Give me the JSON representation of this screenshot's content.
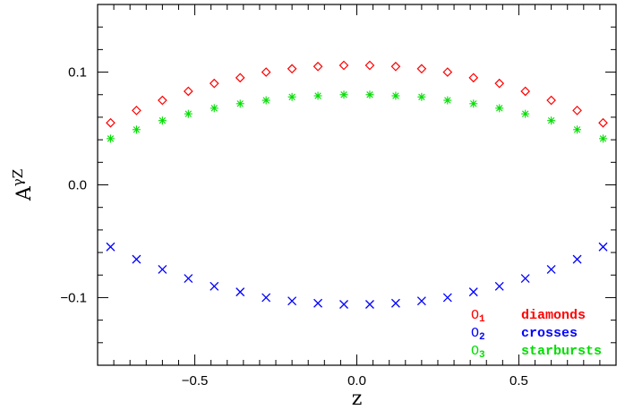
{
  "chart_data": {
    "type": "scatter",
    "xlabel": "z",
    "ylabel": "A",
    "ylabel_superscript": "γZ",
    "xlim": [
      -0.8,
      0.8
    ],
    "ylim": [
      -0.16,
      0.16
    ],
    "x_ticks": [
      -0.5,
      0.0,
      0.5
    ],
    "x_tick_labels": [
      "−0.5",
      "0.0",
      "0.5"
    ],
    "y_ticks": [
      -0.1,
      0.0,
      0.1
    ],
    "y_tick_labels": [
      "−0.1",
      "0.0",
      "0.1"
    ],
    "grid": false,
    "legend_position": "bottom-right",
    "x": [
      -0.76,
      -0.68,
      -0.6,
      -0.52,
      -0.44,
      -0.36,
      -0.28,
      -0.2,
      -0.12,
      -0.04,
      0.04,
      0.12,
      0.2,
      0.28,
      0.36,
      0.44,
      0.52,
      0.6,
      0.68,
      0.76
    ],
    "series": [
      {
        "name": "O",
        "subscript": "1",
        "marker_name": "diamonds",
        "marker": "diamond",
        "color": "#ff0000",
        "values": [
          0.055,
          0.066,
          0.075,
          0.083,
          0.09,
          0.095,
          0.1,
          0.103,
          0.105,
          0.106,
          0.106,
          0.105,
          0.103,
          0.1,
          0.095,
          0.09,
          0.083,
          0.075,
          0.066,
          0.055
        ]
      },
      {
        "name": "O",
        "subscript": "2",
        "marker_name": "crosses",
        "marker": "cross",
        "color": "#0000ff",
        "values": [
          -0.055,
          -0.066,
          -0.075,
          -0.083,
          -0.09,
          -0.095,
          -0.1,
          -0.103,
          -0.105,
          -0.106,
          -0.106,
          -0.105,
          -0.103,
          -0.1,
          -0.095,
          -0.09,
          -0.083,
          -0.075,
          -0.066,
          -0.055
        ]
      },
      {
        "name": "O",
        "subscript": "3",
        "marker_name": "starbursts",
        "marker": "starburst",
        "color": "#00dd00",
        "values": [
          0.041,
          0.049,
          0.057,
          0.063,
          0.068,
          0.072,
          0.075,
          0.078,
          0.079,
          0.08,
          0.08,
          0.079,
          0.078,
          0.075,
          0.072,
          0.068,
          0.063,
          0.057,
          0.049,
          0.041
        ]
      }
    ]
  }
}
